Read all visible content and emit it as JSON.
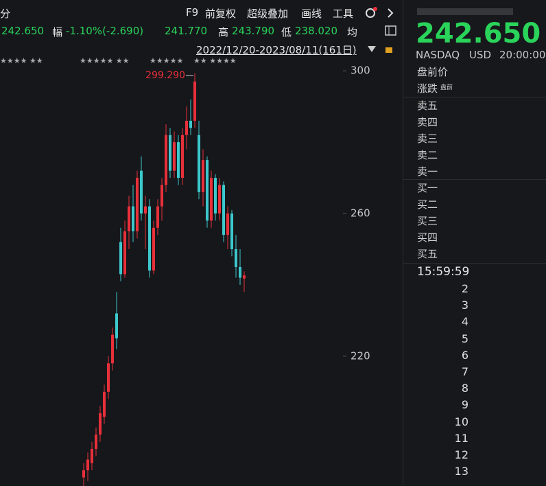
{
  "toolbar": {
    "period": "分",
    "items": [
      "F9",
      "前复权",
      "超级叠加",
      "画线",
      "工具"
    ]
  },
  "quote_bar": {
    "last": "242.650",
    "change_label": "幅",
    "change": "-1.10%(-2.690)",
    "open": "241.770",
    "high_label": "高",
    "high": "243.790",
    "low_label": "低",
    "low": "238.020",
    "avg_label": "均"
  },
  "date_range": "2022/12/20-2023/08/11(161日)",
  "markers": [
    "★★★★ ★★",
    "★★★★★ ★★",
    "★★★★★",
    "★★ ★★★★"
  ],
  "chart_data": {
    "type": "candlestick",
    "annotation": "299.290",
    "open": [
      186,
      188,
      190,
      194,
      198,
      203,
      210,
      218,
      232,
      252,
      243,
      255,
      262,
      255,
      272,
      260,
      262,
      244,
      256,
      262,
      268,
      282,
      272,
      280,
      270,
      282,
      286,
      286,
      282,
      266,
      275,
      258,
      270,
      260,
      268,
      254,
      260,
      250,
      245,
      241.77
    ],
    "high": [
      190,
      193,
      196,
      200,
      206,
      212,
      220,
      228,
      238,
      256,
      258,
      265,
      268,
      272,
      276,
      265,
      264,
      258,
      264,
      270,
      285,
      284,
      283,
      282,
      284,
      290,
      292,
      299.29,
      286,
      278,
      276,
      272,
      271,
      270,
      269,
      262,
      261,
      254,
      250,
      243.79
    ],
    "low": [
      183,
      185,
      188,
      192,
      196,
      201,
      208,
      216,
      222,
      241,
      242,
      250,
      252,
      253,
      258,
      250,
      242,
      243,
      254,
      258,
      266,
      270,
      270,
      268,
      268,
      278,
      282,
      284,
      264,
      262,
      256,
      256,
      258,
      258,
      252,
      250,
      248,
      242,
      240,
      238.02
    ],
    "close": [
      188,
      191,
      194,
      198,
      204,
      210,
      218,
      226,
      225,
      243,
      255,
      262,
      255,
      270,
      260,
      262,
      244,
      256,
      262,
      268,
      282,
      272,
      280,
      270,
      282,
      286,
      284,
      297,
      266,
      275,
      258,
      270,
      260,
      268,
      254,
      260,
      250,
      245,
      242,
      242.65
    ],
    "up_color": "#e8303a",
    "down_color": "#3cc8cc",
    "ylim": [
      183.6,
      303.5
    ],
    "yticks": [
      220,
      260,
      300
    ],
    "grid": false
  },
  "side_panel": {
    "price": "242.650",
    "exchange": "NASDAQ",
    "currency": "USD",
    "time": "20:00:00",
    "premarket": "盘前价",
    "change_label": "涨跌",
    "change_tag": "盘前",
    "asks": [
      "卖五",
      "卖四",
      "卖三",
      "卖二",
      "卖一"
    ],
    "bids": [
      "买一",
      "买二",
      "买三",
      "买四",
      "买五"
    ],
    "trade_time": "15:59:59",
    "rows": [
      2,
      3,
      4,
      5,
      6,
      7,
      8,
      9,
      10,
      11,
      12,
      13
    ]
  }
}
